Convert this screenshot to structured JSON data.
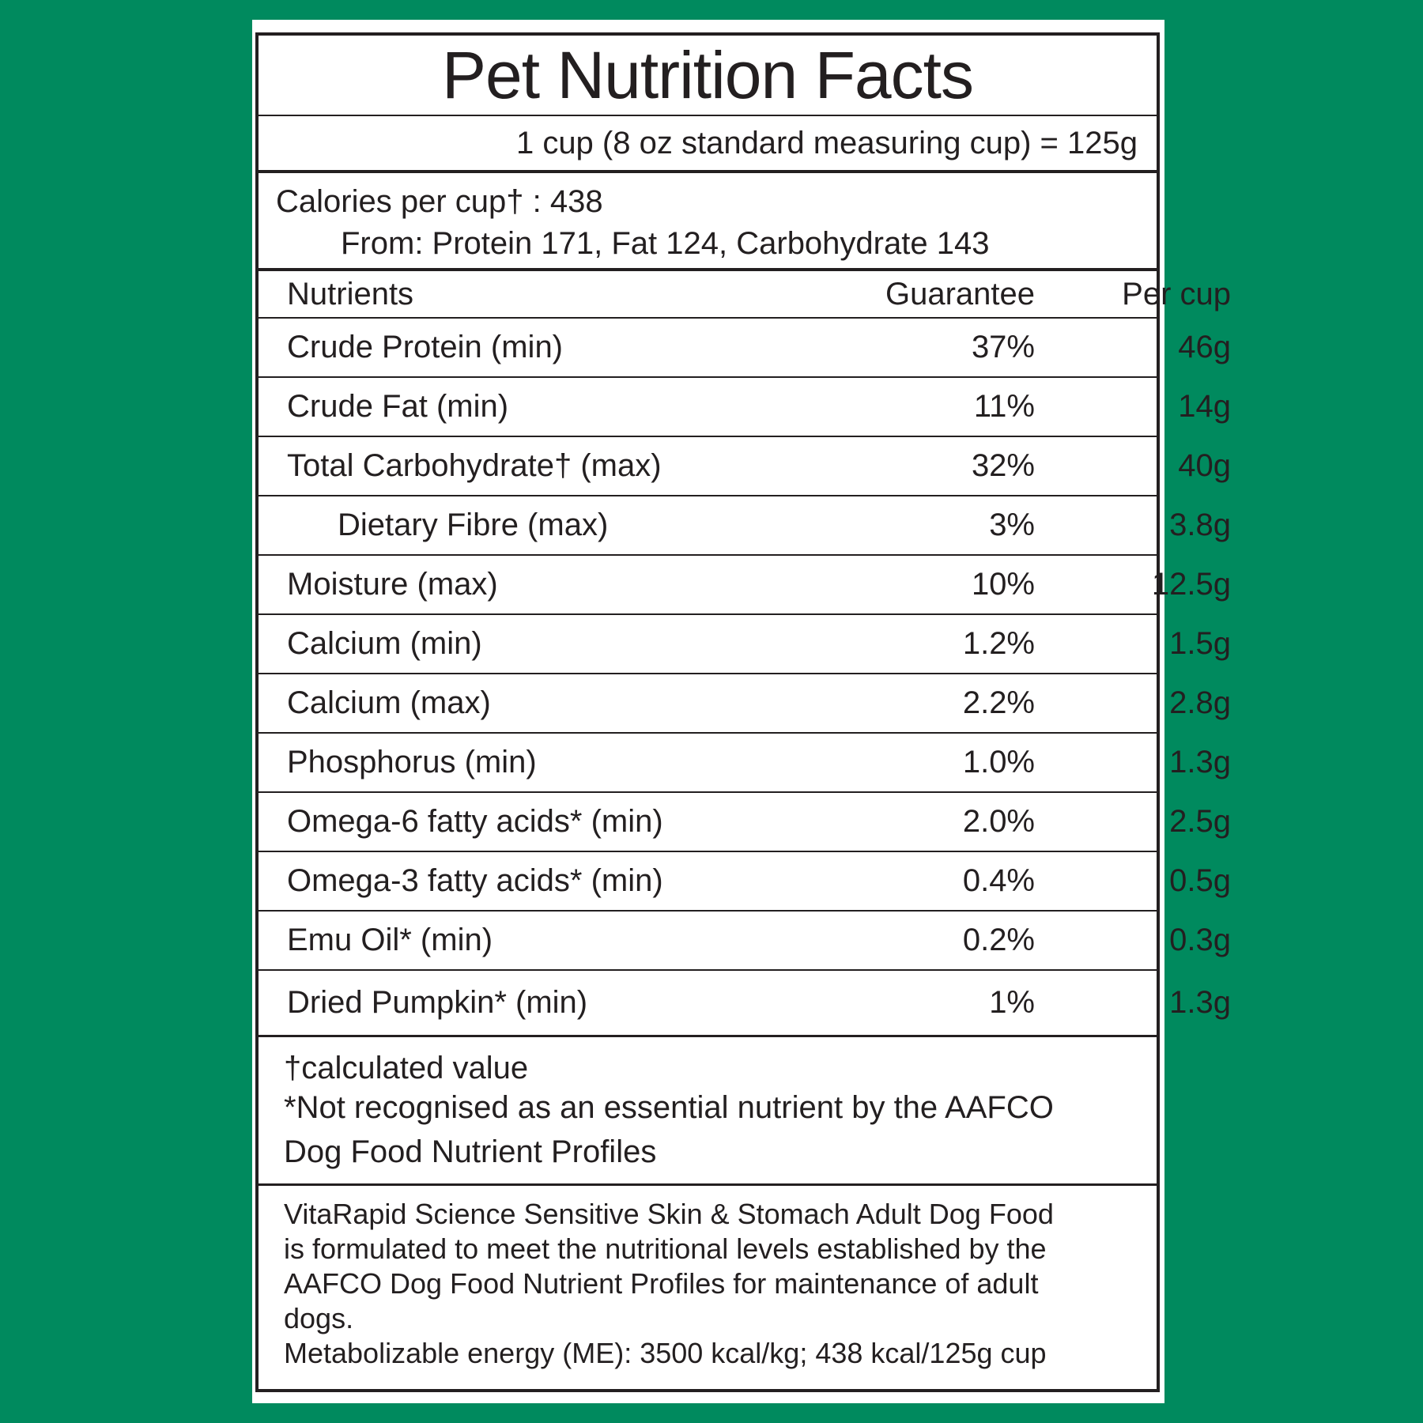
{
  "title": "Pet Nutrition Facts",
  "serving": "1 cup (8 oz standard measuring cup) = 125g",
  "calories": {
    "line": "Calories per cup† : 438",
    "from": "From: Protein 171, Fat 124, Carbohydrate 143"
  },
  "table": {
    "headers": [
      "Nutrients",
      "Guarantee",
      "Per cup"
    ],
    "rows": [
      {
        "name": "Crude Protein (min)",
        "guarantee": "37%",
        "per_cup": "46g"
      },
      {
        "name": "Crude Fat (min)",
        "guarantee": "11%",
        "per_cup": "14g"
      },
      {
        "name": "Total Carbohydrate† (max)",
        "guarantee": "32%",
        "per_cup": "40g"
      },
      {
        "name": "Dietary Fibre (max)",
        "guarantee": "3%",
        "per_cup": "3.8g"
      },
      {
        "name": "Moisture (max)",
        "guarantee": "10%",
        "per_cup": "12.5g"
      },
      {
        "name": "Calcium (min)",
        "guarantee": "1.2%",
        "per_cup": "1.5g"
      },
      {
        "name": "Calcium (max)",
        "guarantee": "2.2%",
        "per_cup": "2.8g"
      },
      {
        "name": "Phosphorus (min)",
        "guarantee": "1.0%",
        "per_cup": "1.3g"
      },
      {
        "name": "Omega-6 fatty acids* (min)",
        "guarantee": "2.0%",
        "per_cup": "2.5g"
      },
      {
        "name": "Omega-3 fatty acids* (min)",
        "guarantee": "0.4%",
        "per_cup": "0.5g"
      },
      {
        "name": "Emu Oil* (min)",
        "guarantee": "0.2%",
        "per_cup": "0.3g"
      },
      {
        "name": "Dried Pumpkin* (min)",
        "guarantee": "1%",
        "per_cup": "1.3g"
      }
    ]
  },
  "notes": {
    "dagger": "†calculated value",
    "asterisk_line1": "*Not recognised as an essential nutrient by the AAFCO",
    "asterisk_line2": "Dog Food Nutrient Profiles"
  },
  "statement": {
    "line1": "VitaRapid Science Sensitive Skin & Stomach Adult Dog Food",
    "line2": "is formulated to meet the nutritional levels established by the",
    "line3": "AAFCO Dog Food Nutrient Profiles for maintenance of adult",
    "line4": "dogs.",
    "line5": "Metabolizable energy (ME): 3500 kcal/kg; 438 kcal/125g cup"
  },
  "colors": {
    "background": "#008a5e",
    "label": "#ffffff",
    "ink": "#231f20"
  }
}
